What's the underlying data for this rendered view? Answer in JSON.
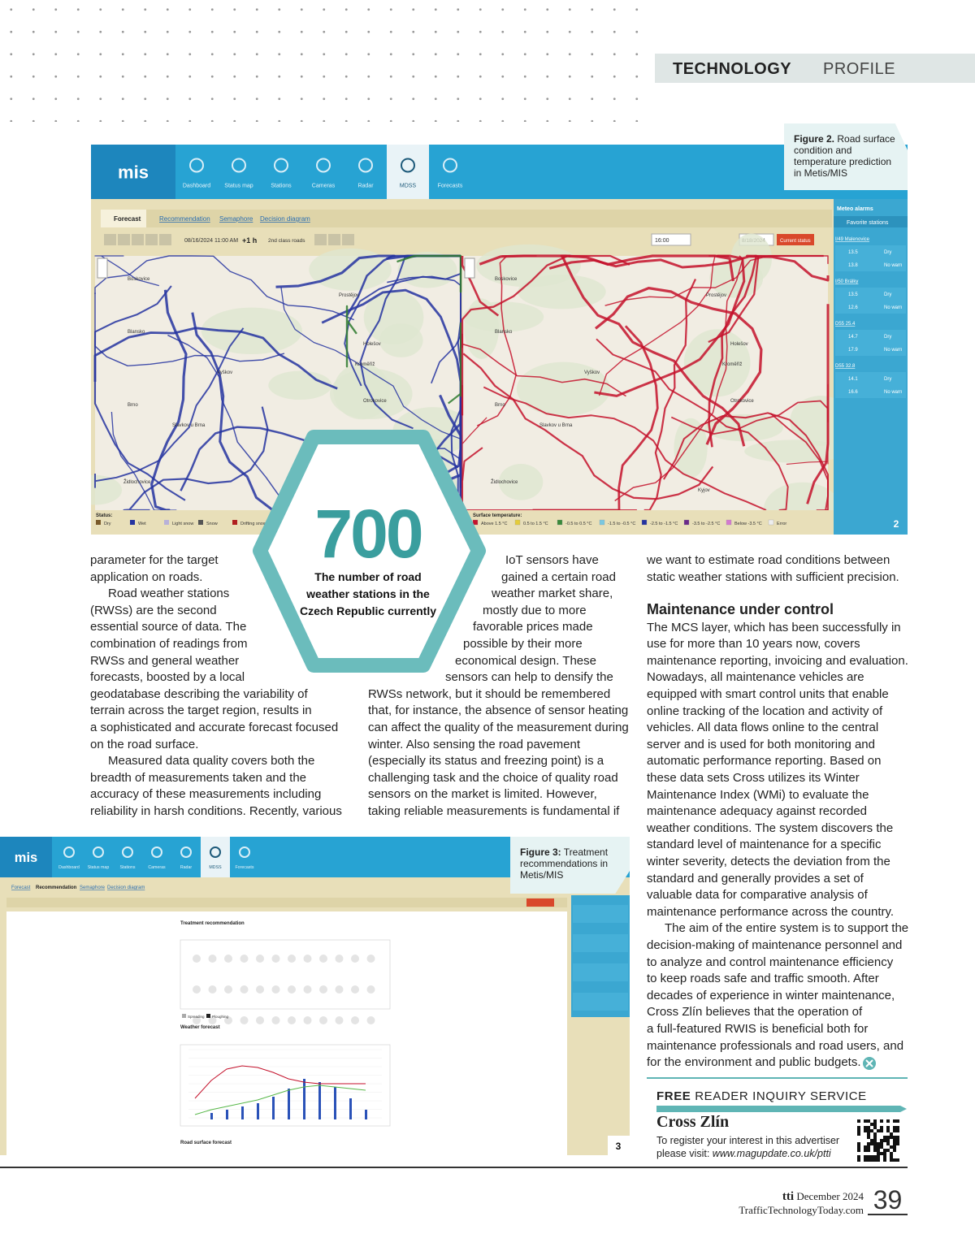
{
  "header": {
    "section": "TECHNOLOGY",
    "section2": "PROFILE"
  },
  "figure2": {
    "caption_label": "Figure 2.",
    "caption": "Road surface condition and temperature prediction in Metis/MIS",
    "number": "2",
    "screenshot": {
      "logo": "mis",
      "nav": [
        "Dashboard",
        "Status map",
        "Stations",
        "Cameras",
        "Radar",
        "MDSS",
        "Forecasts"
      ],
      "tabs": [
        "Forecast",
        "Recommendation",
        "Semaphore",
        "Decision diagram"
      ],
      "toolbar": {
        "time": "08/16/2024 11:00 AM",
        "step": "+1 h",
        "roads": "2nd class roads",
        "hour": "16:00",
        "date": "8/18/2024",
        "button": "Current status"
      },
      "sidebar": {
        "alarms": "Meteo alarms",
        "favorites": "Favorite stations",
        "stations": [
          {
            "name": "I/49 Malenovice",
            "air": "13.5",
            "surface": "13.8",
            "status": "Dry",
            "warning": "No warn"
          },
          {
            "name": "I/50 Brálky",
            "air": "13.5",
            "surface": "12.6",
            "status": "Dry",
            "warning": "No warn"
          },
          {
            "name": "D55 25.4",
            "air": "14.7",
            "surface": "17.9",
            "status": "Dry",
            "warning": "No warn"
          },
          {
            "name": "D55 32.8",
            "air": "14.1",
            "surface": "16.6",
            "status": "Dry",
            "warning": "No warn"
          }
        ]
      },
      "towns": [
        "Boskovice",
        "Blansko",
        "Vyškov",
        "Brno",
        "Slavkov u Brna",
        "Židlochovice",
        "Prostějov",
        "Kroměříž",
        "Holešov",
        "Otrokovice",
        "Kyjov"
      ],
      "legend_status_title": "Status:",
      "legend_status": [
        "Dry",
        "Wet",
        "Light snow",
        "Snow",
        "Drifting snow"
      ],
      "legend_temp_title": "Surface temperature:",
      "legend_temp": [
        "Above 1.5 °C",
        "0.5 to 1.5 °C",
        "-0.5 to 0.5 °C",
        "-1.5 to -0.5 °C",
        "-2.5 to -1.5 °C",
        "-3.5 to -2.5 °C",
        "Below -3.5 °C",
        "Error"
      ]
    }
  },
  "callout": {
    "number": "700",
    "text": [
      "The number of road",
      "weather stations in the",
      "Czech Republic currently"
    ]
  },
  "column1": [
    "parameter for the target",
    "application on roads.",
    "Road weather stations",
    "(RWSs) are the second",
    "essential source of data. The",
    "combination of readings from",
    "RWSs and general weather",
    "forecasts, boosted by a local",
    "geodatabase describing the variability of",
    "terrain across the target region, results in",
    "a sophisticated and accurate forecast focused",
    "on the road surface.",
    "Measured data quality covers both the",
    "breadth of measurements taken and the",
    "accuracy of these measurements including",
    "reliability in harsh conditions. Recently, various"
  ],
  "column2": [
    "IoT sensors have",
    "gained a certain road",
    "weather market share,",
    "mostly due to more",
    "favorable prices made",
    "possible by their more",
    "economical design. These",
    "sensors can help to densify the",
    "RWSs network, but it should be remembered",
    "that, for instance, the absence of sensor heating",
    "can affect the quality of the measurement during",
    "winter. Also sensing the road pavement",
    "(especially its status and freezing point) is a",
    "challenging task and the choice of quality road",
    "sensors on the market is limited. However,",
    "taking reliable measurements is fundamental if"
  ],
  "column3": {
    "lead": [
      "we want to estimate road conditions between",
      "static weather stations with sufficient precision."
    ],
    "heading": "Maintenance under control",
    "lines": [
      "The MCS layer, which has been successfully in",
      "use for more than 10 years now, covers",
      "maintenance reporting, invoicing and evaluation.",
      "Nowadays, all maintenance vehicles are",
      "equipped with smart control units that enable",
      "online tracking of the location and activity of",
      "vehicles. All data flows online to the central",
      "server and is used for both monitoring and",
      "automatic performance reporting. Based on",
      "these data sets Cross utilizes its Winter",
      "Maintenance Index (WMi) to evaluate the",
      "maintenance adequacy against recorded",
      "weather conditions. The system discovers the",
      "standard level of maintenance for a specific",
      "winter severity, detects the deviation from the",
      "standard and generally provides a set of",
      "valuable data for comparative analysis of",
      "maintenance performance across the country.",
      "The aim of the entire system is to support the",
      "decision-making of maintenance personnel and",
      "to analyze and control maintenance efficiency",
      "to keep roads safe and traffic smooth. After",
      "decades of experience in winter maintenance,",
      "Cross Zlín believes that the operation of",
      "a full-featured RWIS is beneficial both for",
      "maintenance professionals and road users, and",
      "for the environment and public budgets."
    ]
  },
  "figure3": {
    "caption_label": "Figure 3:",
    "caption": "Treatment recommendations in Metis/MIS",
    "number": "3",
    "screenshot": {
      "logo": "mis",
      "nav": [
        "Dashboard",
        "Status map",
        "Stations",
        "Cameras",
        "Radar",
        "MDSS",
        "Forecasts"
      ],
      "tabs": [
        "Forecast",
        "Recommendation",
        "Semaphore",
        "Decision diagram"
      ],
      "panels": [
        "Treatment recommendation",
        "Weather forecast",
        "Road surface forecast"
      ],
      "legend": [
        "Spreading",
        "Ploughing"
      ]
    }
  },
  "inquiry": {
    "title_bold": "FREE",
    "title": "READER INQUIRY SERVICE",
    "company": "Cross Zlín",
    "text": "To register your interest in this advertiser",
    "text2": "please visit:",
    "url": "www.magupdate.co.uk/ptti"
  },
  "footer": {
    "brand": "tti",
    "date": "December 2024",
    "site": "TrafficTechnologyToday.com",
    "page": "39"
  }
}
